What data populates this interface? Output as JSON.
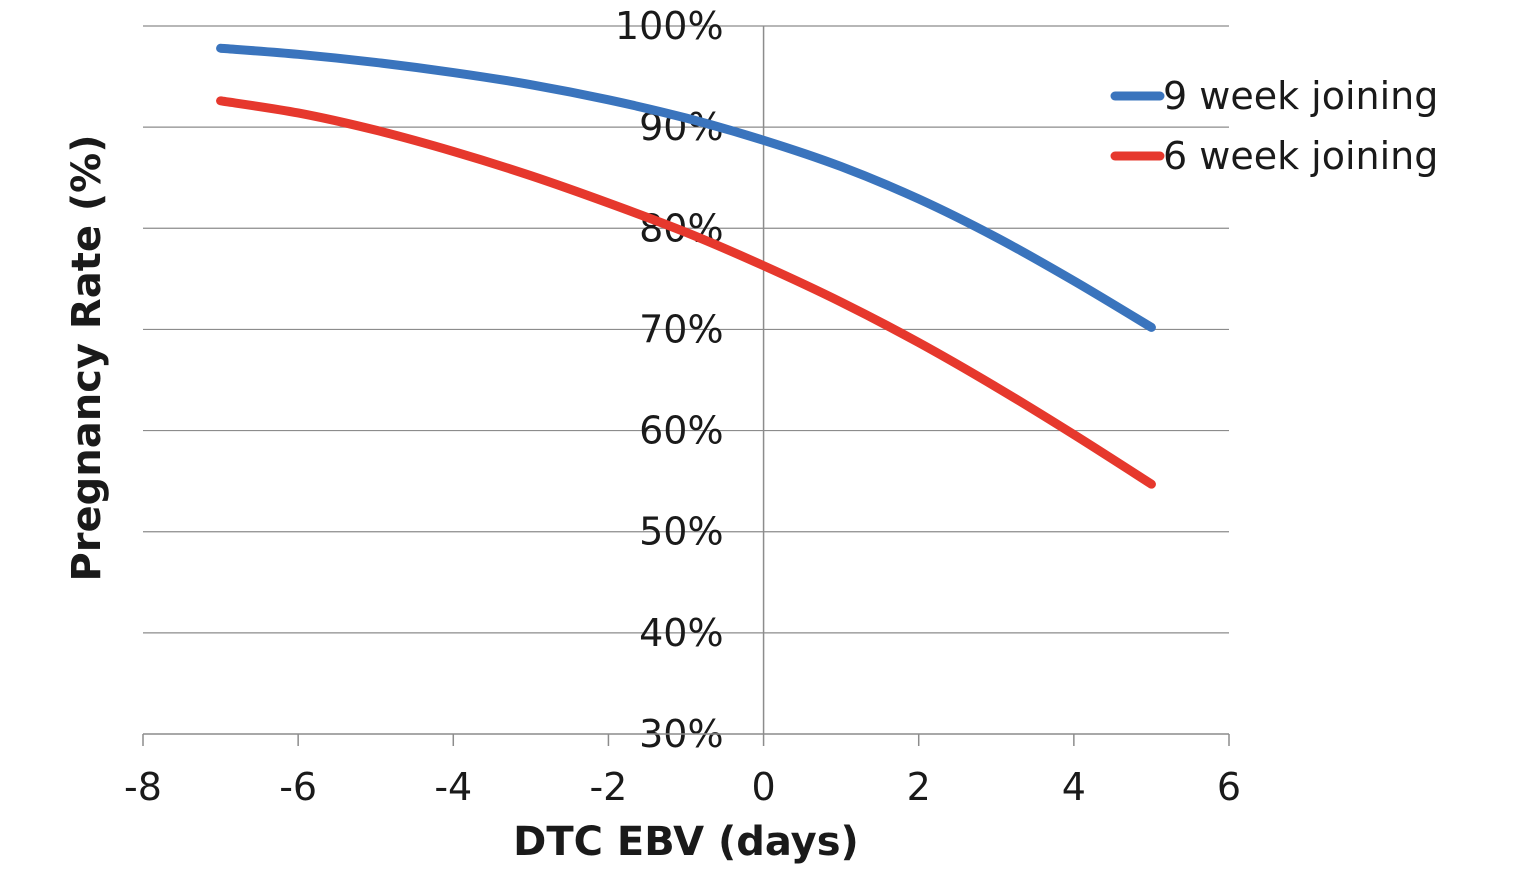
{
  "chart_data": {
    "type": "line",
    "title": "",
    "xlabel": "DTC EBV (days)",
    "ylabel": "Pregnancy Rate (%)",
    "xlim": [
      -8,
      6
    ],
    "ylim": [
      0.3,
      1.0
    ],
    "x_ticks": [
      -8,
      -6,
      -4,
      -2,
      0,
      2,
      4,
      6
    ],
    "x_tick_labels": [
      "-8",
      "-6",
      "-4",
      "-2",
      "0",
      "2",
      "4",
      "6"
    ],
    "y_ticks": [
      0.3,
      0.4,
      0.5,
      0.6,
      0.7,
      0.8,
      0.9,
      1.0
    ],
    "y_tick_labels": [
      "30%",
      "40%",
      "50%",
      "60%",
      "70%",
      "80%",
      "90%",
      "100%"
    ],
    "grid": true,
    "legend_position": "top-right",
    "x": [
      -7,
      -6,
      -5,
      -4,
      -3,
      -2,
      -1,
      0,
      1,
      2,
      3,
      4,
      5
    ],
    "series": [
      {
        "name": "9 week joining",
        "color": "#3a74bd",
        "values": [
          0.978,
          0.972,
          0.964,
          0.954,
          0.942,
          0.927,
          0.909,
          0.887,
          0.861,
          0.829,
          0.791,
          0.748,
          0.702
        ]
      },
      {
        "name": "6 week joining",
        "color": "#e6382d",
        "values": [
          0.926,
          0.914,
          0.897,
          0.876,
          0.852,
          0.825,
          0.796,
          0.763,
          0.727,
          0.687,
          0.643,
          0.596,
          0.547
        ]
      }
    ]
  }
}
